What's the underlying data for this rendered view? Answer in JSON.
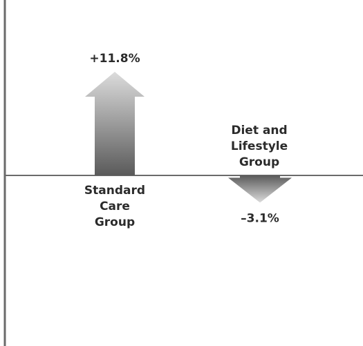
{
  "chart_data": {
    "type": "bar",
    "style": "arrows",
    "unit": "%",
    "categories": [
      [
        "Standard",
        "Care",
        "Group"
      ],
      [
        "Diet and",
        "Lifestyle",
        "Group"
      ]
    ],
    "values": [
      11.8,
      -3.1
    ],
    "value_labels": [
      "+11.8%",
      "–3.1%"
    ],
    "ylim": [
      -19.2,
      19.2
    ],
    "grid": false,
    "legend": "none",
    "colors": {
      "arrow_light": "#d8d8d8",
      "arrow_dark": "#5a5a5a",
      "axis": "#6a6a6a",
      "text": "#2b2b2b"
    }
  }
}
